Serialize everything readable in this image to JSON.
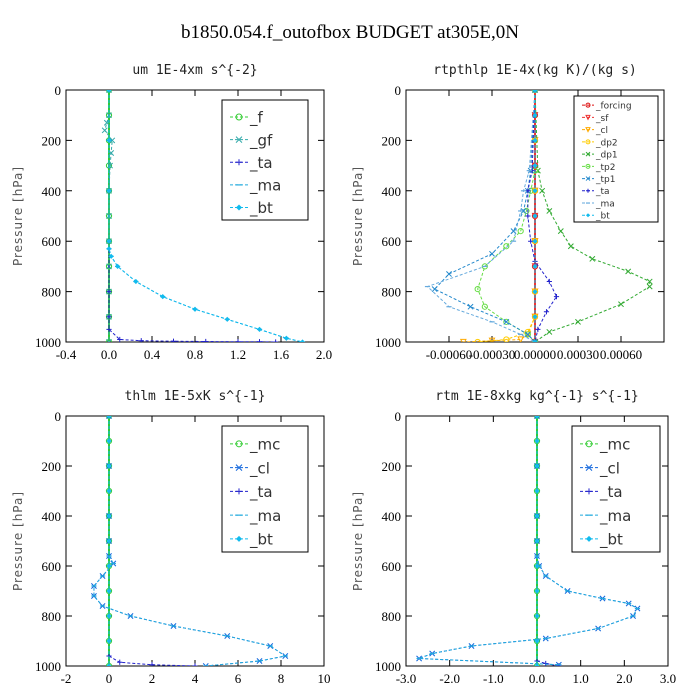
{
  "figure_title": "b1850.054.f_outofbox  BUDGET at305E,0N",
  "colors": {
    "f": "#33cc33",
    "gf": "#33aaaa",
    "ta": "#2222cc",
    "ma": "#22aadd",
    "bt": "#11bbee",
    "mc": "#33cc33",
    "cl": "#1166dd",
    "forcing": "#dd1111",
    "sf": "#ee3333",
    "cl2": "#ffaa00",
    "dp2": "#ffcc00",
    "dp1": "#33aa33",
    "tp2": "#66dd44",
    "tp1": "#2288cc",
    "ta2": "#2222cc",
    "ma2": "#66aadd",
    "bt2": "#11bbee"
  },
  "chart_data": [
    {
      "type": "line",
      "title": "um  1E-4xm s^{-2}",
      "ylabel": "Pressure [hPa]",
      "ylim": [
        1000,
        0
      ],
      "xlim": [
        -0.4,
        2.0
      ],
      "xticks": [
        "-0.4",
        "0.0",
        "0.4",
        "0.8",
        "1.2",
        "1.6",
        "2.0"
      ],
      "yticks": [
        "0",
        "200",
        "400",
        "600",
        "800",
        "1000"
      ],
      "legend_position": "top-right",
      "series": [
        {
          "name": "_f",
          "color_key": "f",
          "marker": "circle",
          "x": [
            0,
            0,
            0,
            0,
            0,
            0,
            0,
            0,
            0,
            0,
            0
          ],
          "y": [
            0,
            100,
            200,
            300,
            400,
            500,
            600,
            700,
            800,
            900,
            1000
          ]
        },
        {
          "name": "_gf",
          "color_key": "gf",
          "marker": "x",
          "x": [
            0,
            0,
            -0.02,
            -0.04,
            0.03,
            0.02,
            0.01,
            0.0,
            0.0,
            0.0,
            0.0,
            0.0,
            0.0,
            0.0
          ],
          "y": [
            0,
            100,
            130,
            160,
            200,
            250,
            300,
            400,
            500,
            600,
            700,
            800,
            900,
            1000
          ]
        },
        {
          "name": "_ta",
          "color_key": "ta",
          "marker": "plus",
          "x": [
            0,
            0,
            0,
            0,
            0,
            0,
            0,
            0.1,
            0.3,
            0.6,
            0.9,
            1.2,
            1.4,
            1.55
          ],
          "y": [
            0,
            200,
            400,
            600,
            800,
            900,
            950,
            990,
            995,
            997,
            998,
            999,
            999,
            1000
          ]
        },
        {
          "name": "_ma",
          "color_key": "ma",
          "marker": "dash",
          "x": [
            0,
            0,
            0,
            0,
            0.0,
            0.02,
            0.08,
            0.25,
            0.5,
            0.8,
            1.1,
            1.4,
            1.65,
            1.8
          ],
          "y": [
            0,
            200,
            400,
            600,
            630,
            660,
            700,
            760,
            820,
            870,
            910,
            950,
            985,
            1000
          ]
        },
        {
          "name": "_bt",
          "color_key": "bt",
          "marker": "diamond",
          "x": [
            0,
            0,
            0,
            0,
            0.0,
            0.02,
            0.08,
            0.25,
            0.5,
            0.8,
            1.1,
            1.4,
            1.65,
            1.8
          ],
          "y": [
            0,
            200,
            400,
            600,
            630,
            660,
            700,
            760,
            820,
            870,
            910,
            950,
            985,
            1000
          ]
        }
      ]
    },
    {
      "type": "line",
      "title": "rtpthlp  1E-4x(kg K)/(kg s)",
      "ylabel": "Pressure [hPa]",
      "ylim": [
        1000,
        0
      ],
      "xlim": [
        -0.0009,
        0.0009
      ],
      "xticks": [
        "-0.00060",
        "-0.00030",
        "0.00000",
        "0.00030",
        "0.00060"
      ],
      "yticks": [
        "0",
        "200",
        "400",
        "600",
        "800",
        "1000"
      ],
      "legend_position": "top-right",
      "series": [
        {
          "name": "_forcing",
          "color_key": "forcing",
          "marker": "circle",
          "x": [
            0,
            0,
            0,
            0,
            0,
            0,
            0,
            0,
            0,
            0,
            0
          ],
          "y": [
            0,
            100,
            200,
            300,
            400,
            500,
            600,
            700,
            800,
            900,
            1000
          ]
        },
        {
          "name": "_sf",
          "color_key": "sf",
          "marker": "tri",
          "x": [
            0,
            0,
            0,
            0,
            0,
            0,
            0,
            0,
            0,
            0,
            0
          ],
          "y": [
            0,
            100,
            200,
            300,
            400,
            500,
            600,
            700,
            800,
            900,
            1000
          ]
        },
        {
          "name": "_cl",
          "color_key": "cl2",
          "marker": "tri",
          "x": [
            0,
            0,
            0,
            0,
            0,
            0,
            -5e-05,
            -0.0001,
            -0.0003,
            -0.0005
          ],
          "y": [
            0,
            200,
            400,
            600,
            800,
            900,
            970,
            990,
            995,
            1000
          ]
        },
        {
          "name": "_dp2",
          "color_key": "dp2",
          "marker": "circle",
          "x": [
            0,
            0,
            0,
            0,
            0,
            0,
            -5e-05,
            -0.0002,
            -0.0004
          ],
          "y": [
            0,
            200,
            400,
            600,
            800,
            900,
            960,
            990,
            1000
          ]
        },
        {
          "name": "_dp1",
          "color_key": "dp1",
          "marker": "x",
          "x": [
            0,
            2e-05,
            5e-05,
            0.0001,
            0.00018,
            0.00025,
            0.0004,
            0.00065,
            0.0008,
            0.0008,
            0.0006,
            0.0003,
            0.0001,
            0.0
          ],
          "y": [
            0,
            320,
            400,
            480,
            560,
            620,
            670,
            720,
            760,
            780,
            850,
            920,
            960,
            1000
          ]
        },
        {
          "name": "_tp2",
          "color_key": "tp2",
          "marker": "circle",
          "x": [
            0,
            0,
            -3e-05,
            -6e-05,
            -0.0001,
            -0.0002,
            -0.00035,
            -0.0004,
            -0.00035,
            -0.0002,
            -5e-05,
            0
          ],
          "y": [
            0,
            320,
            400,
            480,
            560,
            620,
            700,
            790,
            860,
            920,
            970,
            1000
          ]
        },
        {
          "name": "_tp1",
          "color_key": "tp1",
          "marker": "x",
          "x": [
            0,
            -3e-05,
            -5e-05,
            -8e-05,
            -0.00015,
            -0.0003,
            -0.0006,
            -0.0007,
            -0.00045,
            -0.0002,
            -5e-05,
            0
          ],
          "y": [
            0,
            320,
            400,
            480,
            560,
            650,
            730,
            790,
            860,
            920,
            970,
            1000
          ]
        },
        {
          "name": "_ta",
          "color_key": "ta2",
          "marker": "plus",
          "x": [
            0,
            -2e-05,
            -5e-05,
            -5e-05,
            -3e-05,
            0.0,
            0.0001,
            0.00015,
            8e-05,
            2e-05,
            0
          ],
          "y": [
            0,
            320,
            400,
            500,
            600,
            680,
            760,
            820,
            880,
            950,
            1000
          ]
        },
        {
          "name": "_ma",
          "color_key": "ma2",
          "marker": "dash",
          "x": [
            0,
            -4e-05,
            -8e-05,
            -0.0001,
            -0.00015,
            -0.00035,
            -0.00075,
            -0.0006,
            -0.0003,
            -0.0001,
            0
          ],
          "y": [
            0,
            320,
            400,
            480,
            600,
            700,
            780,
            860,
            920,
            970,
            1000
          ]
        },
        {
          "name": "_bt",
          "color_key": "bt2",
          "marker": "diamond",
          "x": [
            0,
            0,
            0,
            0,
            0,
            0,
            0,
            0,
            0,
            0,
            0
          ],
          "y": [
            0,
            100,
            200,
            300,
            400,
            500,
            600,
            700,
            800,
            900,
            1000
          ]
        }
      ]
    },
    {
      "type": "line",
      "title": "thlm  1E-5xK s^{-1}",
      "ylabel": "Pressure [hPa]",
      "ylim": [
        1000,
        0
      ],
      "xlim": [
        -2,
        10
      ],
      "xticks": [
        "-2",
        "0",
        "2",
        "4",
        "6",
        "8",
        "10"
      ],
      "yticks": [
        "0",
        "200",
        "400",
        "600",
        "800",
        "1000"
      ],
      "legend_position": "top-right",
      "series": [
        {
          "name": "_mc",
          "color_key": "mc",
          "marker": "circle",
          "x": [
            0,
            0,
            0,
            0,
            0,
            0,
            0,
            0,
            0,
            0,
            0
          ],
          "y": [
            0,
            100,
            200,
            300,
            400,
            500,
            600,
            700,
            800,
            900,
            1000
          ]
        },
        {
          "name": "_cl",
          "color_key": "cl",
          "marker": "x",
          "x": [
            0,
            0,
            0,
            0,
            0,
            0.2,
            -0.3,
            -0.7,
            -0.7,
            -0.3,
            1.0,
            3.0,
            5.5,
            7.5,
            8.2,
            7.0,
            4.5
          ],
          "y": [
            0,
            200,
            400,
            500,
            560,
            590,
            640,
            680,
            720,
            760,
            800,
            840,
            880,
            920,
            960,
            980,
            1000
          ]
        },
        {
          "name": "_ta",
          "color_key": "ta",
          "marker": "plus",
          "x": [
            0,
            0,
            0,
            0,
            0,
            0,
            0.5,
            2.0,
            4.0
          ],
          "y": [
            0,
            200,
            400,
            600,
            800,
            960,
            985,
            995,
            1000
          ]
        },
        {
          "name": "_ma",
          "color_key": "ma",
          "marker": "dash",
          "x": [
            0,
            0,
            0,
            0,
            0,
            0.2,
            -0.3,
            -0.7,
            -0.7,
            -0.3,
            1.0,
            3.0,
            5.5,
            7.5,
            8.2,
            7.0,
            4.5
          ],
          "y": [
            0,
            200,
            400,
            500,
            560,
            590,
            640,
            680,
            720,
            760,
            800,
            840,
            880,
            920,
            960,
            980,
            1000
          ]
        },
        {
          "name": "_bt",
          "color_key": "bt",
          "marker": "diamond",
          "x": [
            0,
            0,
            0,
            0,
            0,
            0,
            0,
            0,
            0,
            0,
            0
          ],
          "y": [
            0,
            100,
            200,
            300,
            400,
            500,
            600,
            700,
            800,
            900,
            1000
          ]
        }
      ]
    },
    {
      "type": "line",
      "title": "rtm  1E-8xkg kg^{-1} s^{-1}",
      "ylabel": "Pressure [hPa]",
      "ylim": [
        1000,
        0
      ],
      "xlim": [
        -3.0,
        3.0
      ],
      "xticks": [
        "-3.0",
        "-2.0",
        "-1.0",
        "0.0",
        "1.0",
        "2.0",
        "3.0"
      ],
      "yticks": [
        "0",
        "200",
        "400",
        "600",
        "800",
        "1000"
      ],
      "legend_position": "top-right",
      "series": [
        {
          "name": "_mc",
          "color_key": "mc",
          "marker": "circle",
          "x": [
            0,
            0,
            0,
            0,
            0,
            0,
            0,
            0,
            0,
            0,
            0
          ],
          "y": [
            0,
            100,
            200,
            300,
            400,
            500,
            600,
            700,
            800,
            900,
            1000
          ]
        },
        {
          "name": "_cl",
          "color_key": "cl",
          "marker": "x",
          "x": [
            0,
            0,
            0,
            0,
            0,
            0.05,
            0.2,
            0.7,
            1.5,
            2.1,
            2.3,
            2.2,
            1.4,
            0.2,
            -1.5,
            -2.4,
            -2.7,
            0.5
          ],
          "y": [
            0,
            200,
            400,
            500,
            560,
            600,
            640,
            700,
            730,
            750,
            770,
            800,
            850,
            890,
            920,
            950,
            970,
            995
          ]
        },
        {
          "name": "_ta",
          "color_key": "ta",
          "marker": "plus",
          "x": [
            0,
            0,
            0,
            0,
            0,
            0,
            0,
            0.2,
            0.5
          ],
          "y": [
            0,
            200,
            400,
            600,
            800,
            900,
            980,
            990,
            1000
          ]
        },
        {
          "name": "_ma",
          "color_key": "ma",
          "marker": "dash",
          "x": [
            0,
            0,
            0,
            0,
            0,
            0.05,
            0.2,
            0.7,
            1.5,
            2.1,
            2.3,
            2.2,
            1.4,
            0.2,
            -1.5,
            -2.4,
            -2.7,
            0.5
          ],
          "y": [
            0,
            200,
            400,
            500,
            560,
            600,
            640,
            700,
            730,
            750,
            770,
            800,
            850,
            890,
            920,
            950,
            970,
            995
          ]
        },
        {
          "name": "_bt",
          "color_key": "bt",
          "marker": "diamond",
          "x": [
            0,
            0,
            0,
            0,
            0,
            0,
            0,
            0,
            0,
            0,
            0
          ],
          "y": [
            0,
            100,
            200,
            300,
            400,
            500,
            600,
            700,
            800,
            900,
            1000
          ]
        }
      ]
    }
  ]
}
